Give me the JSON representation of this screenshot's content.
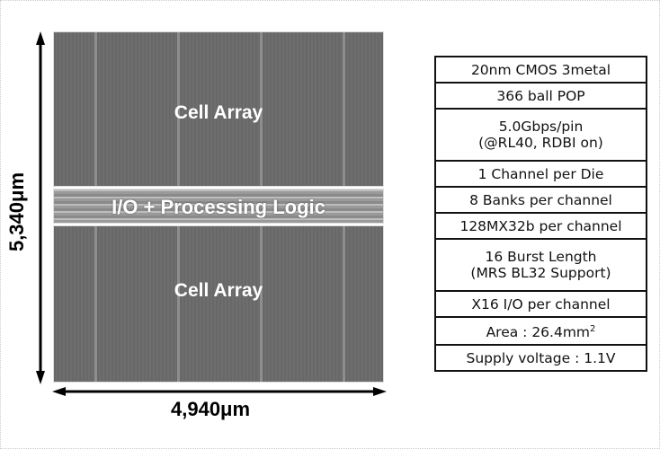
{
  "die": {
    "top_block": "Cell Array",
    "middle_block": "I/O + Processing Logic",
    "bottom_block": "Cell Array",
    "height_label": "5,340μm",
    "width_label": "4,940μm"
  },
  "specs": [
    [
      "20nm CMOS 3metal"
    ],
    [
      "366 ball POP"
    ],
    [
      "5.0Gbps/pin",
      "(@RL40, RDBI on)"
    ],
    [
      "1 Channel per Die"
    ],
    [
      "8 Banks per channel"
    ],
    [
      "128MX32b per channel"
    ],
    [
      "16 Burst Length",
      "(MRS BL32 Support)"
    ],
    [
      "X16 I/O per channel"
    ],
    [
      "Area : 26.4mm",
      "2"
    ],
    [
      "Supply voltage : 1.1V"
    ]
  ]
}
